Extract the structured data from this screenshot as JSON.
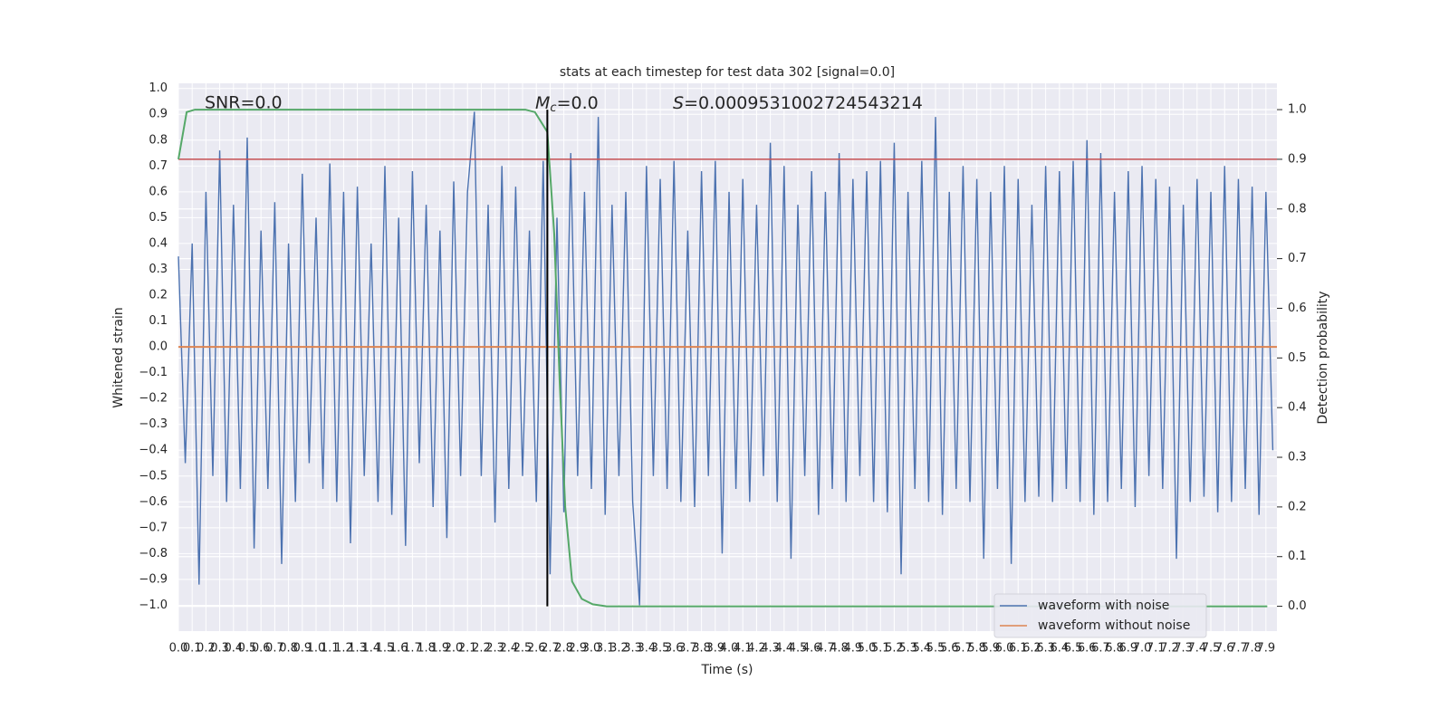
{
  "chart_data": {
    "type": "line",
    "title": "stats at each timestep for test data 302 [signal=0.0]",
    "xlabel": "Time (s)",
    "ylabel": "Whitened strain",
    "y2label": "Detection probability",
    "annotations": {
      "snr": "SNR=0.0",
      "mc": {
        "symbol": "M",
        "subscript": "c",
        "text": "=0.0"
      },
      "s": {
        "symbol": "S",
        "text": "=0.0009531002724543214"
      }
    },
    "xlim": [
      0,
      7.98
    ],
    "ylim": [
      -1.1,
      1.02
    ],
    "y2lim": [
      -0.05,
      1.053
    ],
    "xticks": [
      {
        "value": 0,
        "label": "0.0"
      },
      0.1,
      0.2,
      0.3,
      0.4,
      0.5,
      0.6,
      0.7,
      0.8,
      0.9,
      {
        "value": 1,
        "label": "1.0"
      },
      1.1,
      1.2,
      1.3,
      1.4,
      1.5,
      1.6,
      1.7,
      1.8,
      1.9,
      {
        "value": 2,
        "label": "2.0"
      },
      2.1,
      2.2,
      2.3,
      2.4,
      2.5,
      2.6,
      2.7,
      2.8,
      2.9,
      {
        "value": 3,
        "label": "3.0"
      },
      3.1,
      3.2,
      3.3,
      3.4,
      3.5,
      3.6,
      3.7,
      3.8,
      3.9,
      {
        "value": 4,
        "label": "4.0"
      },
      4.1,
      4.2,
      4.3,
      4.4,
      4.5,
      4.6,
      4.7,
      4.8,
      4.9,
      {
        "value": 5,
        "label": "5.0"
      },
      5.1,
      5.2,
      5.3,
      5.4,
      5.5,
      5.6,
      5.7,
      5.8,
      5.9,
      {
        "value": 6,
        "label": "6.0"
      },
      6.1,
      6.2,
      6.3,
      6.4,
      6.5,
      6.6,
      6.7,
      6.8,
      6.9,
      {
        "value": 7,
        "label": "7.0"
      },
      7.1,
      7.2,
      7.3,
      7.4,
      7.5,
      7.6,
      7.7,
      7.8,
      7.9
    ],
    "yticks": [
      {
        "value": -1,
        "label": "−1.0"
      },
      {
        "value": -0.9,
        "label": "−0.9"
      },
      {
        "value": -0.8,
        "label": "−0.8"
      },
      {
        "value": -0.7,
        "label": "−0.7"
      },
      {
        "value": -0.6,
        "label": "−0.6"
      },
      {
        "value": -0.5,
        "label": "−0.5"
      },
      {
        "value": -0.4,
        "label": "−0.4"
      },
      {
        "value": -0.3,
        "label": "−0.3"
      },
      {
        "value": -0.2,
        "label": "−0.2"
      },
      {
        "value": -0.1,
        "label": "−0.1"
      },
      {
        "value": 0,
        "label": "0.0"
      },
      0.1,
      0.2,
      0.3,
      0.4,
      0.5,
      0.6,
      0.7,
      0.8,
      0.9,
      {
        "value": 1,
        "label": "1.0"
      }
    ],
    "y2ticks": [
      {
        "value": 0,
        "label": "0.0"
      },
      0.1,
      0.2,
      0.3,
      0.4,
      0.5,
      0.6,
      0.7,
      0.8,
      0.9,
      {
        "value": 1,
        "label": "1.0"
      }
    ],
    "grid": true,
    "legend": "lower right",
    "series": [
      {
        "name": "waveform with noise",
        "color": "#4c72b0",
        "x": [
          0,
          0.05,
          0.1,
          0.15,
          0.2,
          0.25,
          0.3,
          0.35,
          0.4,
          0.45,
          0.5,
          0.55,
          0.6,
          0.65,
          0.7,
          0.75,
          0.8,
          0.85,
          0.9,
          0.95,
          1,
          1.05,
          1.1,
          1.15,
          1.2,
          1.25,
          1.3,
          1.35,
          1.4,
          1.45,
          1.5,
          1.55,
          1.6,
          1.65,
          1.7,
          1.75,
          1.8,
          1.85,
          1.9,
          1.95,
          2,
          2.05,
          2.1,
          2.15,
          2.2,
          2.25,
          2.3,
          2.35,
          2.4,
          2.45,
          2.5,
          2.55,
          2.6,
          2.65,
          2.7,
          2.75,
          2.8,
          2.85,
          2.9,
          2.95,
          3,
          3.05,
          3.1,
          3.15,
          3.2,
          3.25,
          3.3,
          3.35,
          3.4,
          3.45,
          3.5,
          3.55,
          3.6,
          3.65,
          3.7,
          3.75,
          3.8,
          3.85,
          3.9,
          3.95,
          4,
          4.05,
          4.1,
          4.15,
          4.2,
          4.25,
          4.3,
          4.35,
          4.4,
          4.45,
          4.5,
          4.55,
          4.6,
          4.65,
          4.7,
          4.75,
          4.8,
          4.85,
          4.9,
          4.95,
          5,
          5.05,
          5.1,
          5.15,
          5.2,
          5.25,
          5.3,
          5.35,
          5.4,
          5.45,
          5.5,
          5.55,
          5.6,
          5.65,
          5.7,
          5.75,
          5.8,
          5.85,
          5.9,
          5.95,
          6,
          6.05,
          6.1,
          6.15,
          6.2,
          6.25,
          6.3,
          6.35,
          6.4,
          6.45,
          6.5,
          6.55,
          6.6,
          6.65,
          6.7,
          6.75,
          6.8,
          6.85,
          6.9,
          6.95,
          7,
          7.05,
          7.1,
          7.15,
          7.2,
          7.25,
          7.3,
          7.35,
          7.4,
          7.45,
          7.5,
          7.55,
          7.6,
          7.65,
          7.7,
          7.75,
          7.8,
          7.85,
          7.9,
          7.95
        ],
        "values": [
          0.35,
          -0.45,
          0.4,
          -0.92,
          0.6,
          -0.5,
          0.76,
          -0.6,
          0.55,
          -0.55,
          0.81,
          -0.78,
          0.45,
          -0.55,
          0.56,
          -0.84,
          0.4,
          -0.6,
          0.67,
          -0.45,
          0.5,
          -0.55,
          0.71,
          -0.6,
          0.6,
          -0.76,
          0.62,
          -0.5,
          0.4,
          -0.6,
          0.7,
          -0.65,
          0.5,
          -0.77,
          0.68,
          -0.45,
          0.55,
          -0.62,
          0.45,
          -0.74,
          0.64,
          -0.5,
          0.6,
          0.91,
          -0.5,
          0.55,
          -0.68,
          0.7,
          -0.55,
          0.62,
          -0.5,
          0.45,
          -0.6,
          0.72,
          -0.88,
          0.5,
          -0.64,
          0.75,
          -0.5,
          0.6,
          -0.55,
          0.89,
          -0.65,
          0.55,
          -0.5,
          0.6,
          -0.6,
          -1.0,
          0.7,
          -0.5,
          0.65,
          -0.55,
          0.72,
          -0.6,
          0.45,
          -0.62,
          0.68,
          -0.5,
          0.72,
          -0.8,
          0.6,
          -0.55,
          0.65,
          -0.6,
          0.55,
          -0.5,
          0.79,
          -0.6,
          0.7,
          -0.82,
          0.55,
          -0.5,
          0.68,
          -0.65,
          0.6,
          -0.55,
          0.75,
          -0.6,
          0.65,
          -0.5,
          0.68,
          -0.6,
          0.72,
          -0.64,
          0.79,
          -0.88,
          0.6,
          -0.55,
          0.72,
          -0.6,
          0.89,
          -0.65,
          0.6,
          -0.55,
          0.7,
          -0.6,
          0.65,
          -0.82,
          0.6,
          -0.55,
          0.7,
          -0.84,
          0.65,
          -0.6,
          0.55,
          -0.58,
          0.7,
          -0.6,
          0.68,
          -0.55,
          0.72,
          -0.6,
          0.8,
          -0.65,
          0.75,
          -0.6,
          0.6,
          -0.55,
          0.68,
          -0.62,
          0.7,
          -0.5,
          0.65,
          -0.55,
          0.62,
          -0.82,
          0.55,
          -0.6,
          0.65,
          -0.58,
          0.6,
          -0.64,
          0.7,
          -0.6,
          0.65,
          -0.55,
          0.62,
          -0.65,
          0.6,
          -0.4
        ]
      },
      {
        "name": "waveform without noise",
        "color": "#dd8452",
        "x": [
          0,
          7.98
        ],
        "values": [
          0,
          0
        ]
      }
    ],
    "probability": {
      "color": "#55a868",
      "axis": "y2",
      "x": [
        0,
        0.06,
        0.12,
        2.52,
        2.59,
        2.68,
        2.73,
        2.77,
        2.81,
        2.86,
        2.93,
        3.01,
        3.11,
        7.91
      ],
      "values": [
        0.9,
        0.995,
        1.0,
        1.0,
        0.995,
        0.955,
        0.75,
        0.45,
        0.2,
        0.05,
        0.015,
        0.004,
        0,
        0
      ]
    },
    "hline": {
      "y": 0.9,
      "axis": "y2",
      "color": "#c44e52"
    },
    "vline": {
      "x": 2.68,
      "axis": "y2",
      "range": [
        0,
        1
      ]
    }
  }
}
